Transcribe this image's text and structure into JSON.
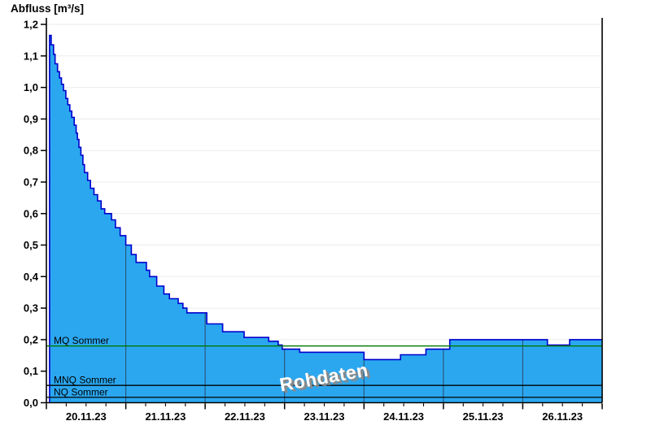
{
  "chart_data": {
    "type": "area",
    "title": "",
    "ylabel": "Abfluss [m³/s]",
    "xlabel": "",
    "watermark": "Rohdaten",
    "categories": [
      "20.11.23",
      "21.11.23",
      "22.11.23",
      "23.11.23",
      "24.11.23",
      "25.11.23",
      "26.11.23"
    ],
    "x_range_days": [
      0,
      7
    ],
    "ylim": [
      0,
      1.2
    ],
    "y_tick_values": [
      0,
      0.1,
      0.2,
      0.3,
      0.4,
      0.5,
      0.6,
      0.7,
      0.8,
      0.9,
      1.0,
      1.1,
      1.2
    ],
    "y_tick_labels": [
      "0,0",
      "0,1",
      "0,2",
      "0,3",
      "0,4",
      "0,5",
      "0,6",
      "0,7",
      "0,8",
      "0,9",
      "1,0",
      "1,1",
      "1,2"
    ],
    "minor_x_tick_step_days": 0.25,
    "grid": {
      "horizontal_step": 0.1,
      "vertical": "day-boundaries",
      "legend": "none"
    },
    "series": [
      {
        "name": "Abfluss Rohdaten",
        "unit": "m³/s",
        "step": true,
        "points_days_value": [
          [
            0.04,
            1.165
          ],
          [
            0.06,
            1.135
          ],
          [
            0.09,
            1.105
          ],
          [
            0.11,
            1.075
          ],
          [
            0.14,
            1.05
          ],
          [
            0.165,
            1.03
          ],
          [
            0.19,
            1.01
          ],
          [
            0.215,
            0.99
          ],
          [
            0.245,
            0.965
          ],
          [
            0.27,
            0.945
          ],
          [
            0.295,
            0.925
          ],
          [
            0.32,
            0.905
          ],
          [
            0.35,
            0.88
          ],
          [
            0.375,
            0.855
          ],
          [
            0.39,
            0.835
          ],
          [
            0.41,
            0.81
          ],
          [
            0.435,
            0.785
          ],
          [
            0.46,
            0.755
          ],
          [
            0.48,
            0.73
          ],
          [
            0.52,
            0.705
          ],
          [
            0.555,
            0.68
          ],
          [
            0.6,
            0.66
          ],
          [
            0.645,
            0.64
          ],
          [
            0.69,
            0.615
          ],
          [
            0.735,
            0.6
          ],
          [
            0.82,
            0.58
          ],
          [
            0.87,
            0.555
          ],
          [
            0.93,
            0.53
          ],
          [
            1.0,
            0.5
          ],
          [
            1.07,
            0.47
          ],
          [
            1.13,
            0.445
          ],
          [
            1.26,
            0.42
          ],
          [
            1.3,
            0.4
          ],
          [
            1.39,
            0.37
          ],
          [
            1.48,
            0.345
          ],
          [
            1.55,
            0.33
          ],
          [
            1.66,
            0.315
          ],
          [
            1.72,
            0.3
          ],
          [
            1.77,
            0.285
          ],
          [
            2.02,
            0.25
          ],
          [
            2.22,
            0.225
          ],
          [
            2.49,
            0.207
          ],
          [
            2.8,
            0.195
          ],
          [
            2.92,
            0.183
          ],
          [
            2.97,
            0.17
          ],
          [
            3.19,
            0.16
          ],
          [
            4.0,
            0.137
          ],
          [
            4.46,
            0.152
          ],
          [
            4.78,
            0.17
          ],
          [
            5.08,
            0.2
          ],
          [
            6.31,
            0.183
          ],
          [
            6.59,
            0.2
          ]
        ]
      }
    ],
    "reference_lines": [
      {
        "label": "MQ Sommer",
        "value": 0.18,
        "color": "#007a00"
      },
      {
        "label": "MNQ Sommer",
        "value": 0.055,
        "color": "#000000"
      },
      {
        "label": "NQ Sommer",
        "value": 0.017,
        "color": "#000000"
      }
    ],
    "colors": {
      "area_fill": "#2ba7f0",
      "area_stroke": "#0000cd",
      "grid": "#ebebeb",
      "day_line": "#2b4a66",
      "axis": "#000000",
      "background": "#ffffff"
    }
  }
}
